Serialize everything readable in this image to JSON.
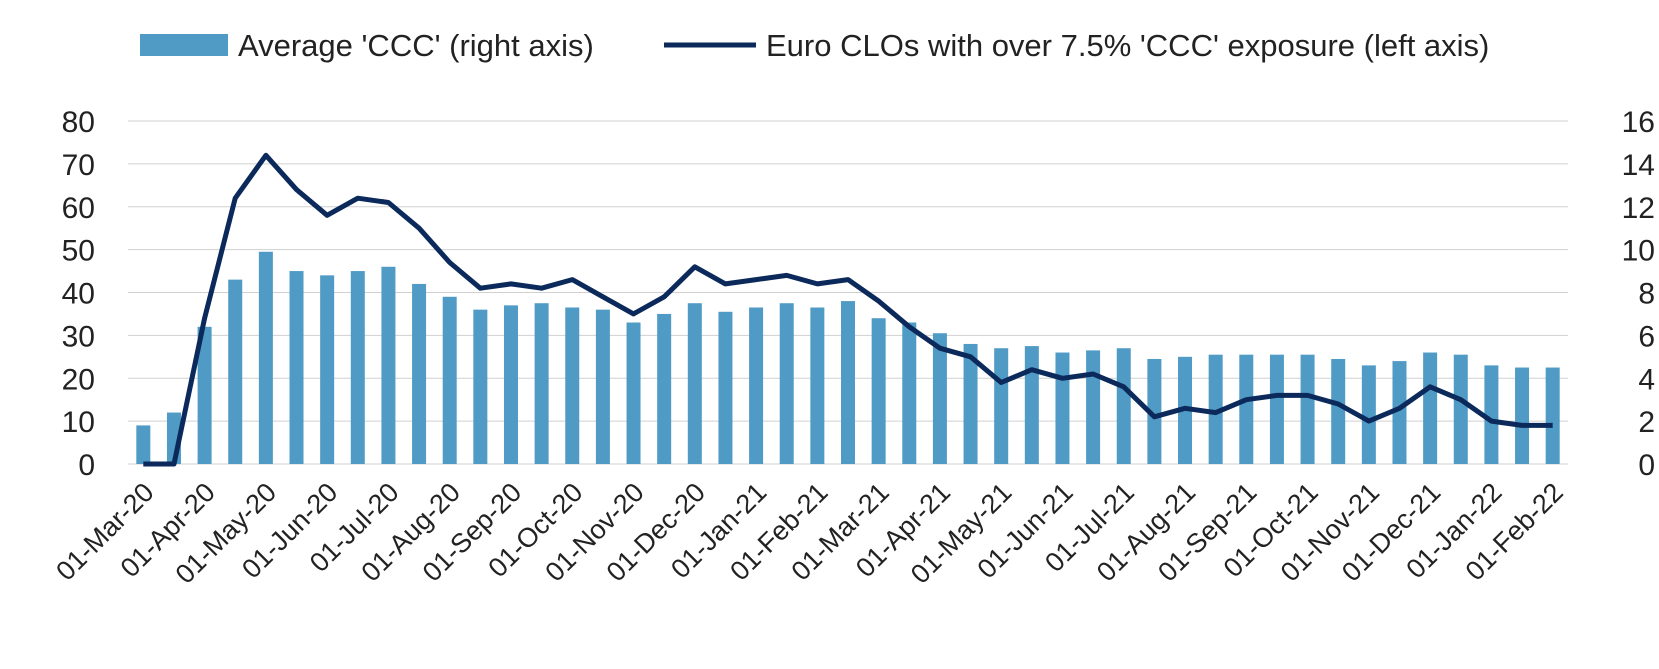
{
  "chart_data": {
    "type": "bar",
    "colors": {
      "bar": "#4f9bc6",
      "line": "#0b2a5b",
      "grid": "#d0d0d0",
      "text": "#222222"
    },
    "legend": {
      "placement": "top",
      "bar_label": "Average 'CCC' (right axis)",
      "line_label": "Euro CLOs with over 7.5% 'CCC' exposure (left axis)"
    },
    "left_axis": {
      "ylim": [
        0,
        80
      ],
      "ticks": [
        "0",
        "10",
        "20",
        "30",
        "40",
        "50",
        "60",
        "70",
        "80"
      ]
    },
    "right_axis": {
      "ylim": [
        0,
        16
      ],
      "ticks": [
        "0",
        "2",
        "4",
        "6",
        "8",
        "10",
        "12",
        "14",
        "16"
      ]
    },
    "x_tick_labels": [
      "01-Mar-20",
      "01-Apr-20",
      "01-May-20",
      "01-Jun-20",
      "01-Jul-20",
      "01-Aug-20",
      "01-Sep-20",
      "01-Oct-20",
      "01-Nov-20",
      "01-Dec-20",
      "01-Jan-21",
      "01-Feb-21",
      "01-Mar-21",
      "01-Apr-21",
      "01-May-21",
      "01-Jun-21",
      "01-Jul-21",
      "01-Aug-21",
      "01-Sep-21",
      "01-Oct-21",
      "01-Nov-21",
      "01-Dec-21",
      "01-Jan-22",
      "01-Feb-22"
    ],
    "grid": true,
    "series": [
      {
        "name": "Average 'CCC' (right axis)",
        "type": "bar",
        "axis": "right",
        "values": [
          1.8,
          2.4,
          6.4,
          8.6,
          9.9,
          9.0,
          8.8,
          9.0,
          9.2,
          8.4,
          7.8,
          7.2,
          7.4,
          7.5,
          7.3,
          7.2,
          6.6,
          7.0,
          7.5,
          7.1,
          7.3,
          7.5,
          7.3,
          7.6,
          6.8,
          6.6,
          6.1,
          5.6,
          5.4,
          5.5,
          5.2,
          5.3,
          5.4,
          4.9,
          5.0,
          5.1,
          5.1,
          5.1,
          5.1,
          4.9,
          4.6,
          4.8,
          5.2,
          5.1,
          4.6,
          4.5,
          4.5
        ]
      },
      {
        "name": "Euro CLOs with over 7.5% 'CCC' exposure (left axis)",
        "type": "line",
        "axis": "left",
        "values": [
          0,
          0,
          34,
          62,
          72,
          64,
          58,
          62,
          61,
          55,
          47,
          41,
          42,
          41,
          43,
          39,
          35,
          39,
          46,
          42,
          43,
          44,
          42,
          43,
          38,
          32,
          27,
          25,
          19,
          22,
          20,
          21,
          18,
          11,
          13,
          12,
          15,
          16,
          16,
          14,
          10,
          13,
          18,
          15,
          10,
          9,
          9
        ]
      }
    ]
  }
}
